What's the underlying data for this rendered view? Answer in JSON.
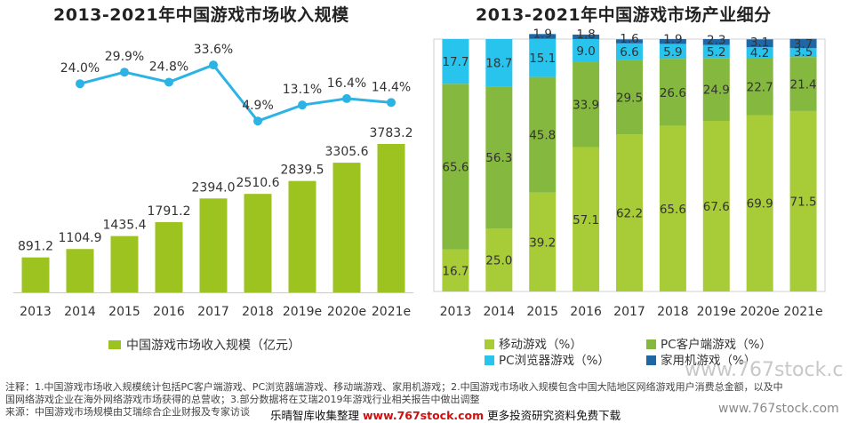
{
  "left_title": "2013-2021年中国游戏市场收入规模",
  "right_title": "2013-2021年中国游戏市场产业细分",
  "notes": {
    "line1": "注释：1.中国游戏市场收入规模统计包括PC客户端游戏、PC浏览器端游戏、移动端游戏、家用机游戏；2.中国游戏市场收入规模包含中国大陆地区网络游戏用户消费总金额，以及中",
    "line2": "国网络游戏企业在海外网络游戏市场获得的总营收；3.部分数据将在艾瑞2019年游戏行业相关报告中做出调整",
    "line3": "来源：中国游戏市场规模由艾瑞综合企业财报及专家访谈"
  },
  "banner": {
    "before": "乐晴智库收集整理 ",
    "url": "www.767stock.com",
    "after": " 更多投资研究资料免费下载"
  },
  "watermarks": {
    "big": "www.767stock.c",
    "small": "www.767stock.com"
  },
  "colors": {
    "bar_green": "#9dc321",
    "line_blue": "#2ab3e4",
    "seg_mobile": "#a8cb38",
    "seg_pc_client": "#85b83e",
    "seg_browser": "#28c4ee",
    "seg_console": "#1f66a5"
  },
  "chart_data": [
    {
      "type": "bar",
      "title": "2013-2021年中国游戏市场收入规模",
      "categories": [
        "2013",
        "2014",
        "2015",
        "2016",
        "2017",
        "2018",
        "2019e",
        "2020e",
        "2021e"
      ],
      "series": [
        {
          "name": "中国游戏市场收入规模（亿元）",
          "values": [
            891.2,
            1104.9,
            1435.4,
            1791.2,
            2394.0,
            2510.6,
            2839.5,
            3305.6,
            3783.2
          ],
          "labels": [
            "891.2",
            "1104.9",
            "1435.4",
            "1791.2",
            "2394.0",
            "2510.6",
            "2839.5",
            "3305.6",
            "3783.2"
          ]
        },
        {
          "kind": "line",
          "values": [
            24.0,
            29.9,
            24.8,
            33.6,
            4.9,
            13.1,
            16.4,
            14.4
          ],
          "labels": [
            "24.0%",
            "29.9%",
            "24.8%",
            "33.6%",
            "4.9%",
            "13.1%",
            "16.4%",
            "14.4%"
          ],
          "x": [
            "2014",
            "2015",
            "2016",
            "2017",
            "2018",
            "2019e",
            "2020e",
            "2021e"
          ]
        }
      ],
      "legend": "bottom",
      "grid": false
    },
    {
      "type": "bar",
      "stacked": true,
      "title": "2013-2021年中国游戏市场产业细分",
      "categories": [
        "2013",
        "2014",
        "2015",
        "2016",
        "2017",
        "2018",
        "2019e",
        "2020e",
        "2021e"
      ],
      "series": [
        {
          "name": "移动游戏（%）",
          "values": [
            16.7,
            25.0,
            39.2,
            57.1,
            62.2,
            65.6,
            67.6,
            69.9,
            71.5
          ]
        },
        {
          "name": "PC客户端游戏（%）",
          "values": [
            65.6,
            56.3,
            45.8,
            33.9,
            29.5,
            26.6,
            24.9,
            22.7,
            21.4
          ]
        },
        {
          "name": "PC浏览器游戏（%）",
          "values": [
            17.7,
            18.7,
            15.1,
            9.0,
            6.6,
            5.9,
            5.2,
            4.2,
            3.5
          ]
        },
        {
          "name": "家用机游戏（%）",
          "values": [
            0,
            0,
            1.9,
            1.8,
            1.6,
            1.9,
            2.3,
            3.1,
            3.7
          ]
        }
      ],
      "ylim": [
        0,
        100
      ],
      "legend": "bottom",
      "grid": false
    }
  ]
}
